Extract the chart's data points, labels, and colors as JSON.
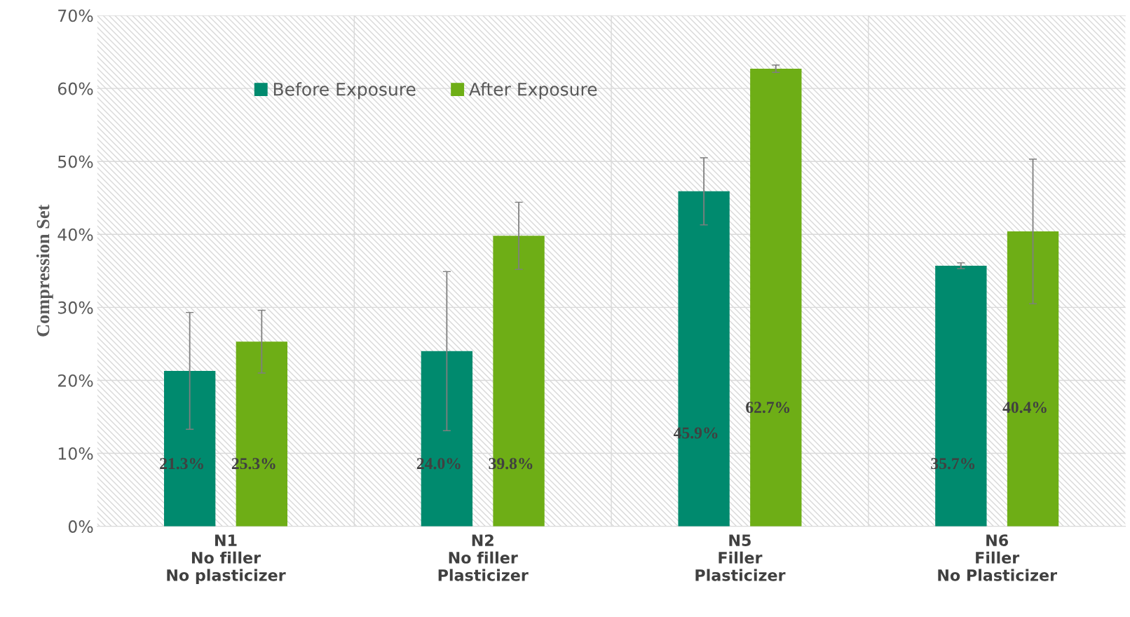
{
  "chart_data": {
    "type": "bar",
    "ylabel": "Compression Set",
    "categories": [
      "N1\nNo filler\nNo plasticizer",
      "N2\nNo filler\nPlasticizer",
      "N5\nFiller\nPlasticizer",
      "N6\nFiller\nNo Plasticizer"
    ],
    "series": [
      {
        "name": "Before Exposure",
        "color": "#008a6e",
        "values": [
          21.3,
          24.0,
          45.9,
          35.7
        ],
        "errors": [
          8.0,
          10.9,
          4.6,
          0.4
        ],
        "value_labels": [
          "21.3%",
          "24.0%",
          "45.9%",
          "35.7%"
        ]
      },
      {
        "name": "After Exposure",
        "color": "#6eae16",
        "values": [
          25.3,
          39.8,
          62.7,
          40.4
        ],
        "errors": [
          4.3,
          4.6,
          0.5,
          9.9
        ],
        "value_labels": [
          "25.3%",
          "39.8%",
          "62.7%",
          "40.4%"
        ]
      }
    ],
    "ylim": [
      0,
      70
    ],
    "yticks": [
      {
        "value": 0,
        "label": "0%"
      },
      {
        "value": 10,
        "label": "10%"
      },
      {
        "value": 20,
        "label": "20%"
      },
      {
        "value": 30,
        "label": "30%"
      },
      {
        "value": 40,
        "label": "40%"
      },
      {
        "value": 50,
        "label": "50%"
      },
      {
        "value": 60,
        "label": "60%"
      },
      {
        "value": 70,
        "label": "70%"
      }
    ],
    "grid": true,
    "legend": "top"
  }
}
